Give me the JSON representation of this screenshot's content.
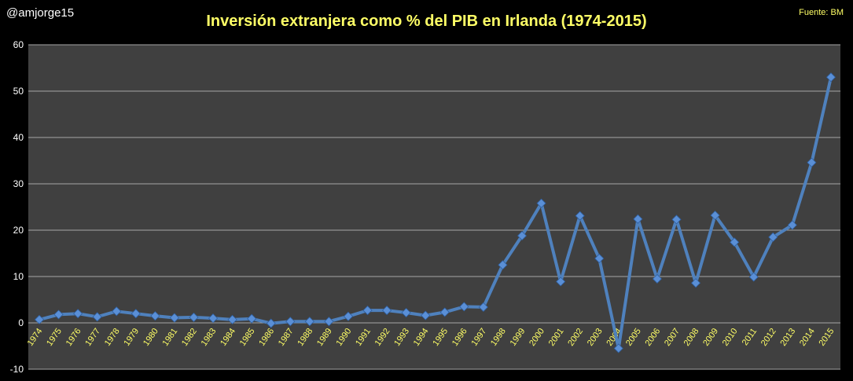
{
  "header": {
    "handle": "@amjorge15",
    "title": "Inversión extranjera como % del PIB en Irlanda (1974-2015)",
    "source": "Fuente: BM"
  },
  "colors": {
    "background": "#000000",
    "plot_area": "#404040",
    "gridline": "#a6a6a6",
    "series": "#4f81bd",
    "marker": "#5a8fd6",
    "title": "#ffff66",
    "x_tick": "#ffff66",
    "y_tick": "#ffffff"
  },
  "chart_data": {
    "type": "line",
    "title": "Inversión extranjera como % del PIB en Irlanda (1974-2015)",
    "xlabel": "",
    "ylabel": "",
    "ylim": [
      -10,
      60
    ],
    "yticks": [
      -10,
      0,
      10,
      20,
      30,
      40,
      50,
      60
    ],
    "grid": true,
    "legend": "none",
    "categories": [
      "1974",
      "1975",
      "1976",
      "1977",
      "1978",
      "1979",
      "1980",
      "1981",
      "1982",
      "1983",
      "1984",
      "1985",
      "1986",
      "1987",
      "1988",
      "1989",
      "1990",
      "1991",
      "1992",
      "1993",
      "1994",
      "1995",
      "1996",
      "1997",
      "1998",
      "1999",
      "2000",
      "2001",
      "2002",
      "2003",
      "2004",
      "2005",
      "2006",
      "2007",
      "2008",
      "2009",
      "2010",
      "2011",
      "2012",
      "2013",
      "2014",
      "2015"
    ],
    "series": [
      {
        "values": [
          0.7,
          1.8,
          2.0,
          1.3,
          2.5,
          2.0,
          1.5,
          1.1,
          1.2,
          1.0,
          0.7,
          0.9,
          -0.1,
          0.3,
          0.3,
          0.3,
          1.4,
          2.7,
          2.7,
          2.2,
          1.6,
          2.3,
          3.5,
          3.4,
          12.5,
          18.8,
          25.8,
          8.9,
          23.1,
          13.9,
          -5.5,
          22.4,
          9.5,
          22.3,
          8.6,
          23.2,
          17.4,
          9.9,
          18.5,
          21.1,
          34.6,
          53.0
        ]
      }
    ]
  }
}
